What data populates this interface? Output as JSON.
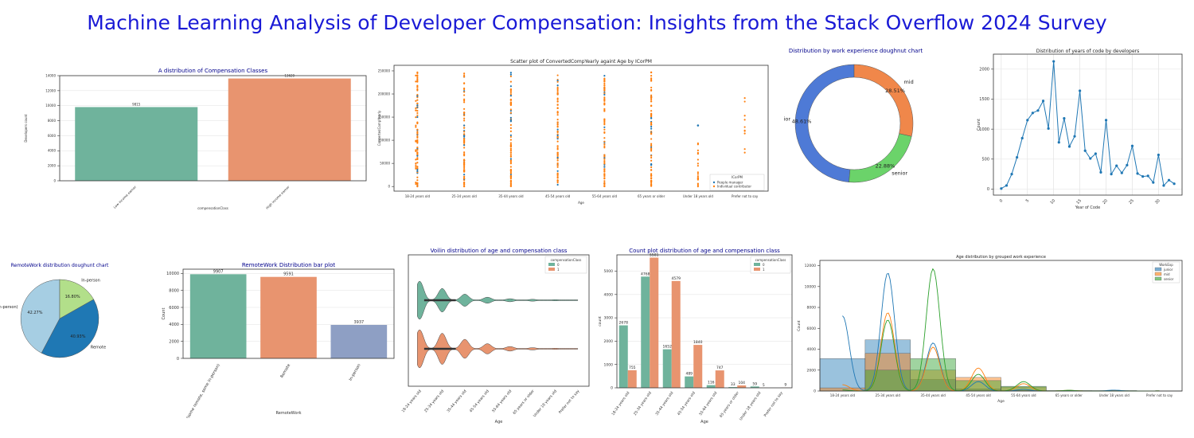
{
  "page": {
    "title": "Machine Learning Analysis of Developer Compensation: Insights from the Stack Overflow 2024 Survey"
  },
  "colors": {
    "teal": "#6fb39c",
    "salmon": "#e8946f",
    "slate": "#8e9fc4",
    "blue": "#1f77b4",
    "orange": "#ff7f0e",
    "green": "#2ca02c",
    "navyTitle": "#00008b",
    "donutJunior": "#4e7ad6",
    "donutSenior": "#6bd36a",
    "donutMid": "#f0874a",
    "pieHybrid": "#a6cee3",
    "pieRemote": "#1f78b4",
    "pieInperson": "#b2df8a"
  },
  "chart_data": [
    {
      "id": "comp-classes",
      "type": "bar",
      "title": "A distribution of Compensation Classes",
      "xlabel": "compensationClass",
      "ylabel": "Developers count",
      "categories": [
        "Low income earner",
        "High income earner"
      ],
      "values": [
        9815,
        13620
      ],
      "value_labels": [
        "9815",
        "13620"
      ],
      "ylim": [
        0,
        14000
      ],
      "yticks": [
        0,
        2000,
        4000,
        6000,
        8000,
        10000,
        12000,
        14000
      ],
      "colors": [
        "#6fb39c",
        "#e8946f"
      ],
      "grid": "y"
    },
    {
      "id": "scatter-age",
      "type": "scatter",
      "title": "Scatter plot of ConvertedCompYearly againt Age by ICorPM",
      "xlabel": "Age",
      "ylabel": "ConvertedCompYearly",
      "categories": [
        "18-24 years old",
        "25-34 years old",
        "35-44 years old",
        "45-54 years old",
        "55-64 years old",
        "65 years or older",
        "Under 18 years old",
        "Prefer not to say"
      ],
      "yticks": [
        0,
        50000,
        100000,
        150000,
        200000,
        250000
      ],
      "ylim": [
        -10000,
        262000
      ],
      "ranges": [
        [
          0,
          250000
        ],
        [
          0,
          250000
        ],
        [
          0,
          250000
        ],
        [
          0,
          250000
        ],
        [
          0,
          250000
        ],
        [
          0,
          250000
        ],
        [
          0,
          100000
        ],
        [
          70000,
          240000
        ]
      ],
      "extra_points": {
        "6": [
          132000
        ]
      },
      "legend": {
        "title": "ICorPM",
        "entries": [
          "People manager",
          "Individual contributor"
        ],
        "position": "lower right"
      },
      "series": [
        {
          "name": "People manager",
          "color": "#1f77b4"
        },
        {
          "name": "Individual contributor",
          "color": "#ff7f0e"
        }
      ]
    },
    {
      "id": "exp-doughnut",
      "type": "pie",
      "title": "Distribution by work experience doughnut chart",
      "labels": [
        "junior",
        "senior",
        "mid"
      ],
      "values": [
        48.61,
        22.88,
        28.51
      ],
      "pct_labels": [
        "48.61%",
        "22.88%",
        "28.51%"
      ],
      "colors": [
        "#4e7ad6",
        "#6bd36a",
        "#f0874a"
      ],
      "hole": true
    },
    {
      "id": "years-code",
      "type": "line",
      "title": "Distribution of years of code by developers",
      "xlabel": "Year of Code",
      "ylabel": "Count",
      "x": [
        0,
        1,
        2,
        3,
        4,
        5,
        6,
        7,
        8,
        9,
        10,
        11,
        12,
        13,
        14,
        15,
        16,
        17,
        18,
        19,
        20,
        21,
        22,
        23,
        24,
        25,
        26,
        27,
        28,
        29,
        30,
        31,
        32,
        33
      ],
      "values": [
        10,
        60,
        250,
        530,
        850,
        1150,
        1270,
        1310,
        1470,
        1010,
        2130,
        780,
        1180,
        710,
        880,
        1640,
        640,
        510,
        590,
        280,
        1150,
        250,
        390,
        270,
        400,
        720,
        260,
        210,
        220,
        110,
        570,
        60,
        150,
        90
      ],
      "xticks": [
        0,
        5,
        10,
        15,
        20,
        25,
        30
      ],
      "yticks": [
        0,
        500,
        1000,
        1500,
        2000
      ],
      "xlim": [
        -1.5,
        34.5
      ],
      "ylim": [
        -100,
        2250
      ],
      "color": "#1f77b4",
      "grid": "both"
    },
    {
      "id": "remote-doughnut",
      "type": "pie",
      "title": "RemoteWork distribution doughunt chart",
      "labels": [
        "Hybrid (some remote, some in-person)",
        "Remote",
        "In-person"
      ],
      "values": [
        42.27,
        40.93,
        16.8
      ],
      "pct_labels": [
        "42.27%",
        "40.93%",
        "16.80%"
      ],
      "colors": [
        "#a6cee3",
        "#1f78b4",
        "#b2df8a"
      ]
    },
    {
      "id": "remote-bar",
      "type": "bar",
      "title": "RemoteWork Distribution bar plot",
      "xlabel": "RemoteWork",
      "ylabel": "Count",
      "categories": [
        "Hybrid (some remote, some in-person)",
        "Remote",
        "In-person"
      ],
      "values": [
        9907,
        9591,
        3937
      ],
      "value_labels": [
        "9907",
        "9591",
        "3937"
      ],
      "ylim": [
        0,
        10500
      ],
      "yticks": [
        0,
        2000,
        4000,
        6000,
        8000,
        10000
      ],
      "colors": [
        "#6fb39c",
        "#e8946f",
        "#8e9fc4"
      ],
      "grid": "y"
    },
    {
      "id": "violin",
      "type": "area",
      "title": "Voilin distribution of age and compensation class",
      "xlabel": "Age",
      "categories": [
        "18-24 years old",
        "25-34 years old",
        "35-44 years old",
        "45-54 years old",
        "55-64 years old",
        "65 years or older",
        "Under 18 years old",
        "Prefer not to say"
      ],
      "legend": {
        "title": "compensationClass",
        "entries": [
          "0",
          "1"
        ],
        "position": "upper right"
      },
      "series": [
        {
          "name": "0",
          "color": "#6fb39c",
          "widths": [
            1.0,
            0.62,
            0.32,
            0.16,
            0.08,
            0.05,
            0.03,
            0.01
          ]
        },
        {
          "name": "1",
          "color": "#e8946f",
          "widths": [
            1.0,
            0.82,
            0.5,
            0.27,
            0.12,
            0.06,
            0.03,
            0.02
          ]
        }
      ]
    },
    {
      "id": "count-age",
      "type": "bar",
      "title": "Count plot distribution of age and compensation class",
      "xlabel": "Age",
      "ylabel": "count",
      "categories": [
        "18-24 years old",
        "25-34 years old",
        "35-44 years old",
        "45-54 years old",
        "55-64 years old",
        "65 years or older",
        "Under 18 years old",
        "Prefer not to say"
      ],
      "ylim": [
        0,
        5700
      ],
      "yticks": [
        0,
        1000,
        2000,
        3000,
        4000,
        5000
      ],
      "legend": {
        "title": "compensationClass",
        "entries": [
          "0",
          "1"
        ],
        "position": "upper right"
      },
      "series": [
        {
          "name": "0",
          "values": [
            2678,
            4768,
            1652,
            489,
            116,
            33,
            59,
            0
          ],
          "value_labels": [
            "2678",
            "4768",
            "1652",
            "489",
            "116",
            "33",
            "59",
            ""
          ],
          "color": "#6fb39c"
        },
        {
          "name": "1",
          "values": [
            755,
            5581,
            4579,
            1840,
            747,
            104,
            5,
            9
          ],
          "value_labels": [
            "755",
            "5581",
            "4579",
            "1840",
            "747",
            "104",
            "5",
            "9"
          ],
          "color": "#e8946f"
        }
      ],
      "grid": "y"
    },
    {
      "id": "age-hist",
      "type": "area",
      "title": "Age distribution by grouped work experience",
      "xlabel": "Age",
      "ylabel": "Count",
      "categories": [
        "18-24 years old",
        "25-34 years old",
        "35-44 years old",
        "45-54 years old",
        "55-64 years old",
        "65 years or older",
        "Under 18 years old",
        "Prefer not to say"
      ],
      "ylim": [
        0,
        12500
      ],
      "yticks": [
        0,
        2000,
        4000,
        6000,
        8000,
        10000,
        12000
      ],
      "legend": {
        "title": "WorkExp",
        "entries": [
          "junior",
          "mid",
          "senior"
        ],
        "position": "upper right"
      },
      "series": [
        {
          "name": "junior",
          "values": [
            3100,
            4900,
            1100,
            200,
            40,
            10,
            40,
            5
          ],
          "peak": [
            7200,
            11300,
            4600,
            900,
            150,
            30,
            80,
            10
          ],
          "color": "#1f77b4"
        },
        {
          "name": "mid",
          "values": [
            300,
            3600,
            2000,
            1300,
            380,
            30,
            5,
            5
          ],
          "peak": [
            600,
            7500,
            4200,
            2200,
            700,
            60,
            10,
            10
          ],
          "color": "#ff7f0e"
        },
        {
          "name": "senior",
          "values": [
            0,
            2000,
            3100,
            1000,
            450,
            40,
            0,
            5
          ],
          "peak": [
            100,
            6800,
            11700,
            1600,
            900,
            70,
            5,
            10
          ],
          "color": "#2ca02c"
        }
      ]
    }
  ]
}
